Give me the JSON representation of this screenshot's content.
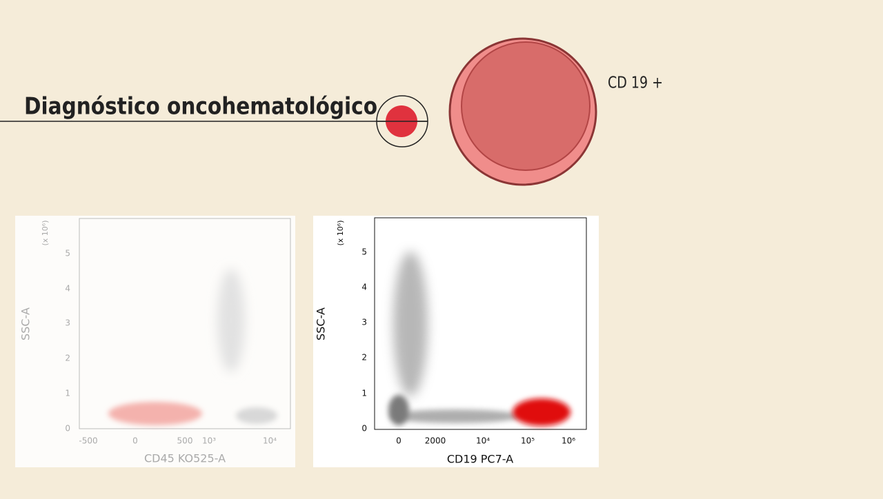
{
  "header": {
    "title": "Diagnóstico oncohematológico"
  },
  "cell": {
    "label": "CD 19 +"
  },
  "plots": [
    {
      "y_axis_label": "SSC-A",
      "y_multiplier": "(x 10⁶)",
      "yticks": [
        "0",
        "1",
        "2",
        "3",
        "4",
        "5"
      ],
      "xticks": [
        "-500",
        "0",
        "500",
        "10³",
        "10⁴"
      ],
      "x_axis_label": "CD45 KO525-A"
    },
    {
      "y_axis_label": "SSC-A",
      "y_multiplier": "(x 10⁶)",
      "yticks": [
        "0",
        "1",
        "2",
        "3",
        "4",
        "5"
      ],
      "xticks": [
        "0",
        "2000",
        "10⁴",
        "10⁵",
        "10⁶"
      ],
      "x_axis_label": "CD19 PC7-A"
    }
  ]
}
